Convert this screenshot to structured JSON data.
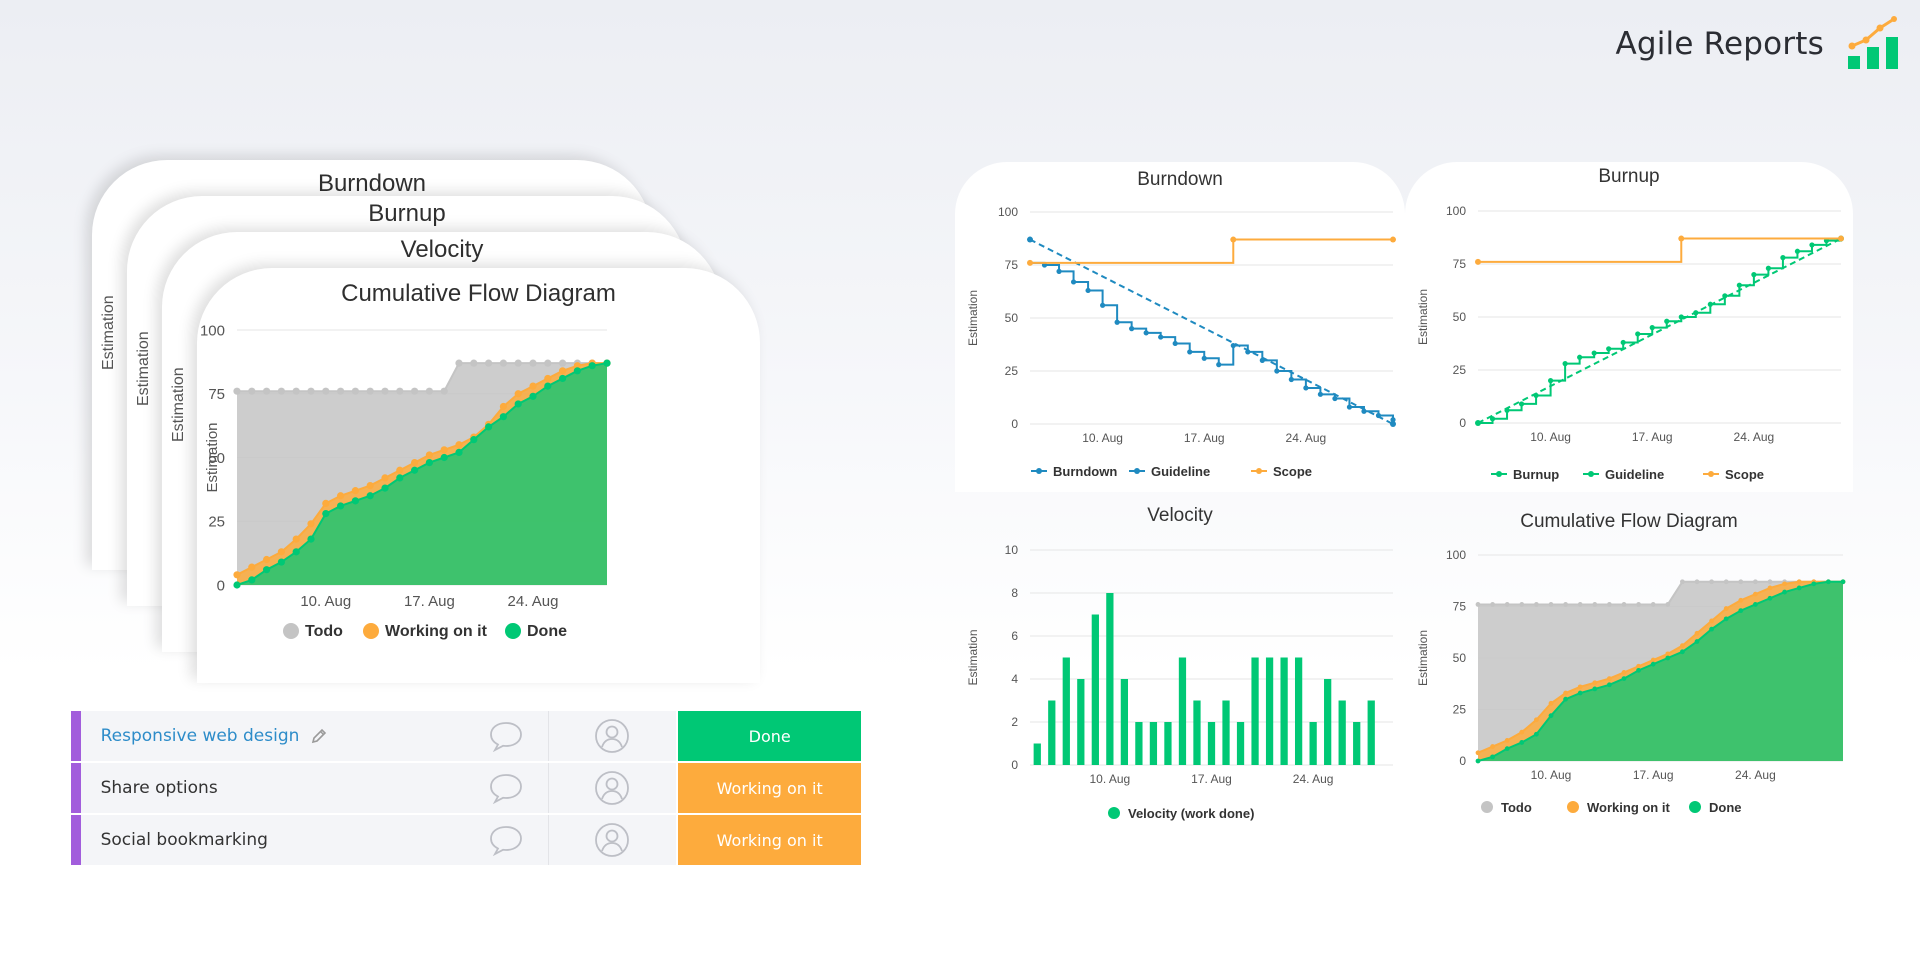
{
  "header": {
    "brand_title": "Agile Reports",
    "logo_icon": "chart-trend-icon",
    "colors": {
      "orange": "#fdab3d",
      "green": "#00c875"
    }
  },
  "stack": {
    "cards": [
      {
        "title": "Burndown",
        "ylabel": "Estimation"
      },
      {
        "title": "Burnup",
        "ylabel": "Estimation"
      },
      {
        "title": "Velocity",
        "ylabel": "Estimation"
      },
      {
        "title": "Cumulative Flow Diagram",
        "ylabel": "Estimation"
      }
    ]
  },
  "panels": {
    "burndown": {
      "title": "Burndown",
      "ylabel": "Estimation"
    },
    "burnup": {
      "title": "Burnup",
      "ylabel": "Estimation"
    },
    "velocity": {
      "title": "Velocity",
      "ylabel": "Estimation"
    },
    "cfd": {
      "title": "Cumulative Flow Diagram",
      "ylabel": "Estimation"
    }
  },
  "board": {
    "rows": [
      {
        "name": "Responsive web design",
        "status": "Done",
        "status_color": "#00c875",
        "is_link": true
      },
      {
        "name": "Share options",
        "status": "Working on it",
        "status_color": "#fdab3d",
        "is_link": false
      },
      {
        "name": "Social bookmarking",
        "status": "Working on it",
        "status_color": "#fdab3d",
        "is_link": false
      }
    ],
    "icons": {
      "edit": "pencil-icon",
      "comment": "comment-bubble-icon",
      "person": "person-avatar-icon"
    },
    "row_marker_color": "#a25ddc"
  },
  "chart_data": [
    {
      "id": "cfd-large",
      "type": "area",
      "title": "Cumulative Flow Diagram",
      "ylabel": "Estimation",
      "ylim": [
        0,
        100
      ],
      "yticks": [
        0,
        25,
        50,
        75,
        100
      ],
      "xticks": [
        "10. Aug",
        "17. Aug",
        "24. Aug"
      ],
      "xtick_positions": [
        6,
        13,
        20
      ],
      "x": [
        0,
        1,
        2,
        3,
        4,
        5,
        6,
        7,
        8,
        9,
        10,
        11,
        12,
        13,
        14,
        15,
        16,
        17,
        18,
        19,
        20,
        21,
        22,
        23,
        24,
        25
      ],
      "series": [
        {
          "name": "Todo",
          "color": "#c4c4c4",
          "values": [
            76,
            76,
            76,
            76,
            76,
            76,
            76,
            76,
            76,
            76,
            76,
            76,
            76,
            76,
            76,
            87,
            87,
            87,
            87,
            87,
            87,
            87,
            87,
            87,
            87,
            87
          ]
        },
        {
          "name": "Working on it",
          "color": "#fdab3d",
          "values": [
            4,
            7,
            10,
            13,
            18,
            24,
            32,
            35,
            37,
            39,
            42,
            45,
            48,
            51,
            53,
            55,
            58,
            63,
            70,
            75,
            78,
            81,
            84,
            86,
            87,
            87
          ]
        },
        {
          "name": "Done",
          "color": "#00c875",
          "values": [
            0,
            2,
            6,
            9,
            13,
            18,
            28,
            31,
            33,
            35,
            38,
            42,
            45,
            48,
            50,
            52,
            57,
            62,
            66,
            71,
            74,
            78,
            81,
            84,
            86,
            87
          ]
        }
      ],
      "legend": [
        "Todo",
        "Working on it",
        "Done"
      ],
      "legend_position": "bottom"
    },
    {
      "id": "burndown-small",
      "type": "line",
      "title": "Burndown",
      "ylabel": "Estimation",
      "ylim": [
        0,
        100
      ],
      "yticks": [
        0,
        25,
        50,
        75,
        100
      ],
      "xticks": [
        "10. Aug",
        "17. Aug",
        "24. Aug"
      ],
      "xtick_positions": [
        5,
        12,
        19
      ],
      "x": [
        0,
        1,
        2,
        3,
        4,
        5,
        6,
        7,
        8,
        9,
        10,
        11,
        12,
        13,
        14,
        15,
        16,
        17,
        18,
        19,
        20,
        21,
        22,
        23,
        24,
        25
      ],
      "series": [
        {
          "name": "Burndown",
          "color": "#1f8ac0",
          "step": true,
          "values": [
            76,
            75,
            72,
            67,
            63,
            56,
            48,
            45,
            43,
            41,
            38,
            34,
            31,
            28,
            37,
            34,
            30,
            25,
            21,
            17,
            14,
            12,
            8,
            6,
            4,
            2
          ]
        },
        {
          "name": "Guideline",
          "color": "#1f8ac0",
          "dashed": true,
          "points": [
            [
              0,
              87
            ],
            [
              25,
              0
            ]
          ]
        },
        {
          "name": "Scope",
          "color": "#fdab3d",
          "step": true,
          "points": [
            [
              0,
              76
            ],
            [
              14,
              76
            ],
            [
              14,
              87
            ],
            [
              25,
              87
            ]
          ]
        }
      ],
      "legend": [
        "Burndown",
        "Guideline",
        "Scope"
      ],
      "legend_position": "bottom"
    },
    {
      "id": "burnup-small",
      "type": "line",
      "title": "Burnup",
      "ylabel": "Estimation",
      "ylim": [
        0,
        100
      ],
      "yticks": [
        0,
        25,
        50,
        75,
        100
      ],
      "xticks": [
        "10. Aug",
        "17. Aug",
        "24. Aug"
      ],
      "xtick_positions": [
        5,
        12,
        19
      ],
      "x": [
        0,
        1,
        2,
        3,
        4,
        5,
        6,
        7,
        8,
        9,
        10,
        11,
        12,
        13,
        14,
        15,
        16,
        17,
        18,
        19,
        20,
        21,
        22,
        23,
        24,
        25
      ],
      "series": [
        {
          "name": "Burnup",
          "color": "#00c875",
          "step": true,
          "values": [
            0,
            2,
            6,
            9,
            13,
            20,
            28,
            31,
            33,
            35,
            38,
            42,
            45,
            48,
            50,
            52,
            56,
            60,
            65,
            70,
            73,
            78,
            81,
            84,
            86,
            87
          ]
        },
        {
          "name": "Guideline",
          "color": "#00c875",
          "dashed": true,
          "points": [
            [
              0,
              0
            ],
            [
              25,
              87
            ]
          ]
        },
        {
          "name": "Scope",
          "color": "#fdab3d",
          "step": true,
          "points": [
            [
              0,
              76
            ],
            [
              14,
              76
            ],
            [
              14,
              87
            ],
            [
              25,
              87
            ]
          ]
        }
      ],
      "legend": [
        "Burnup",
        "Guideline",
        "Scope"
      ],
      "legend_position": "bottom"
    },
    {
      "id": "velocity-small",
      "type": "bar",
      "title": "Velocity",
      "ylabel": "Estimation",
      "ylim": [
        0,
        10
      ],
      "yticks": [
        0,
        2,
        4,
        6,
        8,
        10
      ],
      "xticks": [
        "10. Aug",
        "17. Aug",
        "24. Aug"
      ],
      "xtick_positions": [
        5,
        12,
        19
      ],
      "x": [
        0,
        1,
        2,
        3,
        4,
        5,
        6,
        7,
        8,
        9,
        10,
        11,
        12,
        13,
        14,
        15,
        16,
        17,
        18,
        19,
        20,
        21,
        22,
        23,
        24
      ],
      "series": [
        {
          "name": "Velocity (work done)",
          "color": "#00c875",
          "values": [
            1,
            3,
            5,
            4,
            7,
            8,
            4,
            2,
            2,
            2,
            5,
            3,
            2,
            3,
            2,
            5,
            5,
            5,
            5,
            2,
            4,
            3,
            2,
            3,
            0
          ]
        }
      ],
      "legend": [
        "Velocity (work done)"
      ],
      "legend_position": "bottom"
    },
    {
      "id": "cfd-small",
      "type": "area",
      "title": "Cumulative Flow Diagram",
      "ylabel": "Estimation",
      "ylim": [
        0,
        100
      ],
      "yticks": [
        0,
        25,
        50,
        75,
        100
      ],
      "xticks": [
        "10. Aug",
        "17. Aug",
        "24. Aug"
      ],
      "xtick_positions": [
        5,
        12,
        19
      ],
      "x": [
        0,
        1,
        2,
        3,
        4,
        5,
        6,
        7,
        8,
        9,
        10,
        11,
        12,
        13,
        14,
        15,
        16,
        17,
        18,
        19,
        20,
        21,
        22,
        23,
        24,
        25
      ],
      "series": [
        {
          "name": "Todo",
          "color": "#c4c4c4",
          "values": [
            76,
            76,
            76,
            76,
            76,
            76,
            76,
            76,
            76,
            76,
            76,
            76,
            76,
            76,
            87,
            87,
            87,
            87,
            87,
            87,
            87,
            87,
            87,
            87,
            87,
            87
          ]
        },
        {
          "name": "Working on it",
          "color": "#fdab3d",
          "values": [
            4,
            7,
            10,
            14,
            20,
            28,
            33,
            36,
            38,
            40,
            43,
            46,
            49,
            52,
            56,
            62,
            68,
            74,
            78,
            81,
            84,
            86,
            87,
            87,
            87,
            87
          ]
        },
        {
          "name": "Done",
          "color": "#00c875",
          "values": [
            0,
            2,
            6,
            9,
            13,
            22,
            30,
            33,
            35,
            37,
            40,
            44,
            47,
            50,
            53,
            58,
            64,
            69,
            73,
            76,
            79,
            82,
            84,
            86,
            87,
            87
          ]
        }
      ],
      "legend": [
        "Todo",
        "Working on it",
        "Done"
      ],
      "legend_position": "bottom"
    }
  ]
}
